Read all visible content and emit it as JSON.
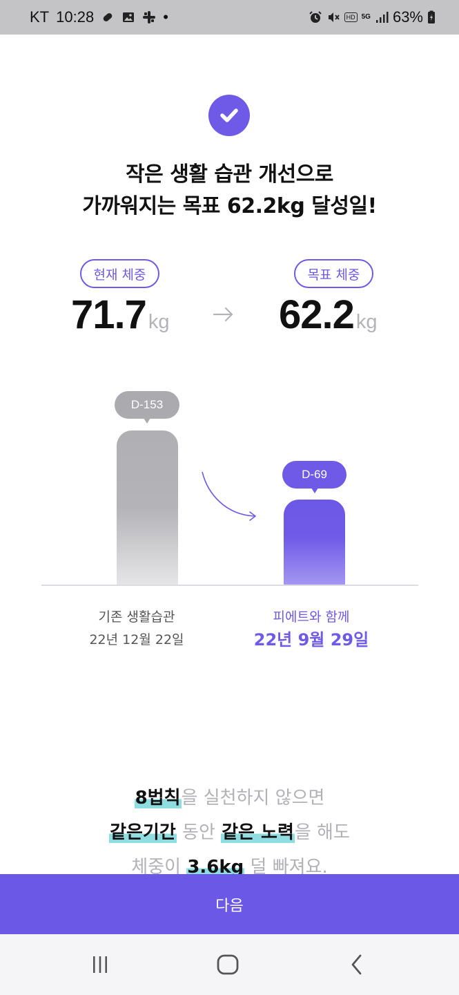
{
  "status_bar": {
    "carrier": "KT",
    "time": "10:28",
    "dot": "•",
    "hd": "HD",
    "network": "5G",
    "battery": "63%",
    "icons": [
      "bandage-icon",
      "image-icon",
      "slack-icon",
      "alarm-icon",
      "mute-icon",
      "hd-icon",
      "5g-icon",
      "signal-icon",
      "battery-icon"
    ]
  },
  "header": {
    "check_icon": "check-circle-icon",
    "headline_line1": "작은 생활 습관 개선으로",
    "headline_line2": "가까워지는 목표 62.2kg 달성일!"
  },
  "weights": {
    "current_label": "현재 체중",
    "current_value": "71.7",
    "target_label": "목표 체중",
    "target_value": "62.2",
    "unit": "kg",
    "arrow_icon": "arrow-right-icon"
  },
  "comparison": {
    "before": {
      "badge": "D-153",
      "days": 153,
      "label": "기존 생활습관",
      "date": "22년 12월 22일"
    },
    "after": {
      "badge": "D-69",
      "days": 69,
      "label": "피에트와 함께",
      "date": "22년 9월 29일"
    }
  },
  "explanation": {
    "l1_hl": "8법칙",
    "l1_rest": "을 실천하지 않으면",
    "l2_hl1": "같은기간",
    "l2_mid": " 동안 ",
    "l2_hl2": "같은 노력",
    "l2_rest": "을 해도",
    "l3_pre": "체중이 ",
    "l3_hl": "3.6kg",
    "l3_rest": " 덜 빠져요."
  },
  "footer": {
    "next_label": "다음"
  },
  "navigation": {
    "buttons": [
      "recents-icon",
      "home-icon",
      "back-icon"
    ]
  },
  "colors": {
    "accent": "#6e5ae6",
    "highlight": "#8fdde0",
    "bar_gray": "#b0b0b4"
  }
}
